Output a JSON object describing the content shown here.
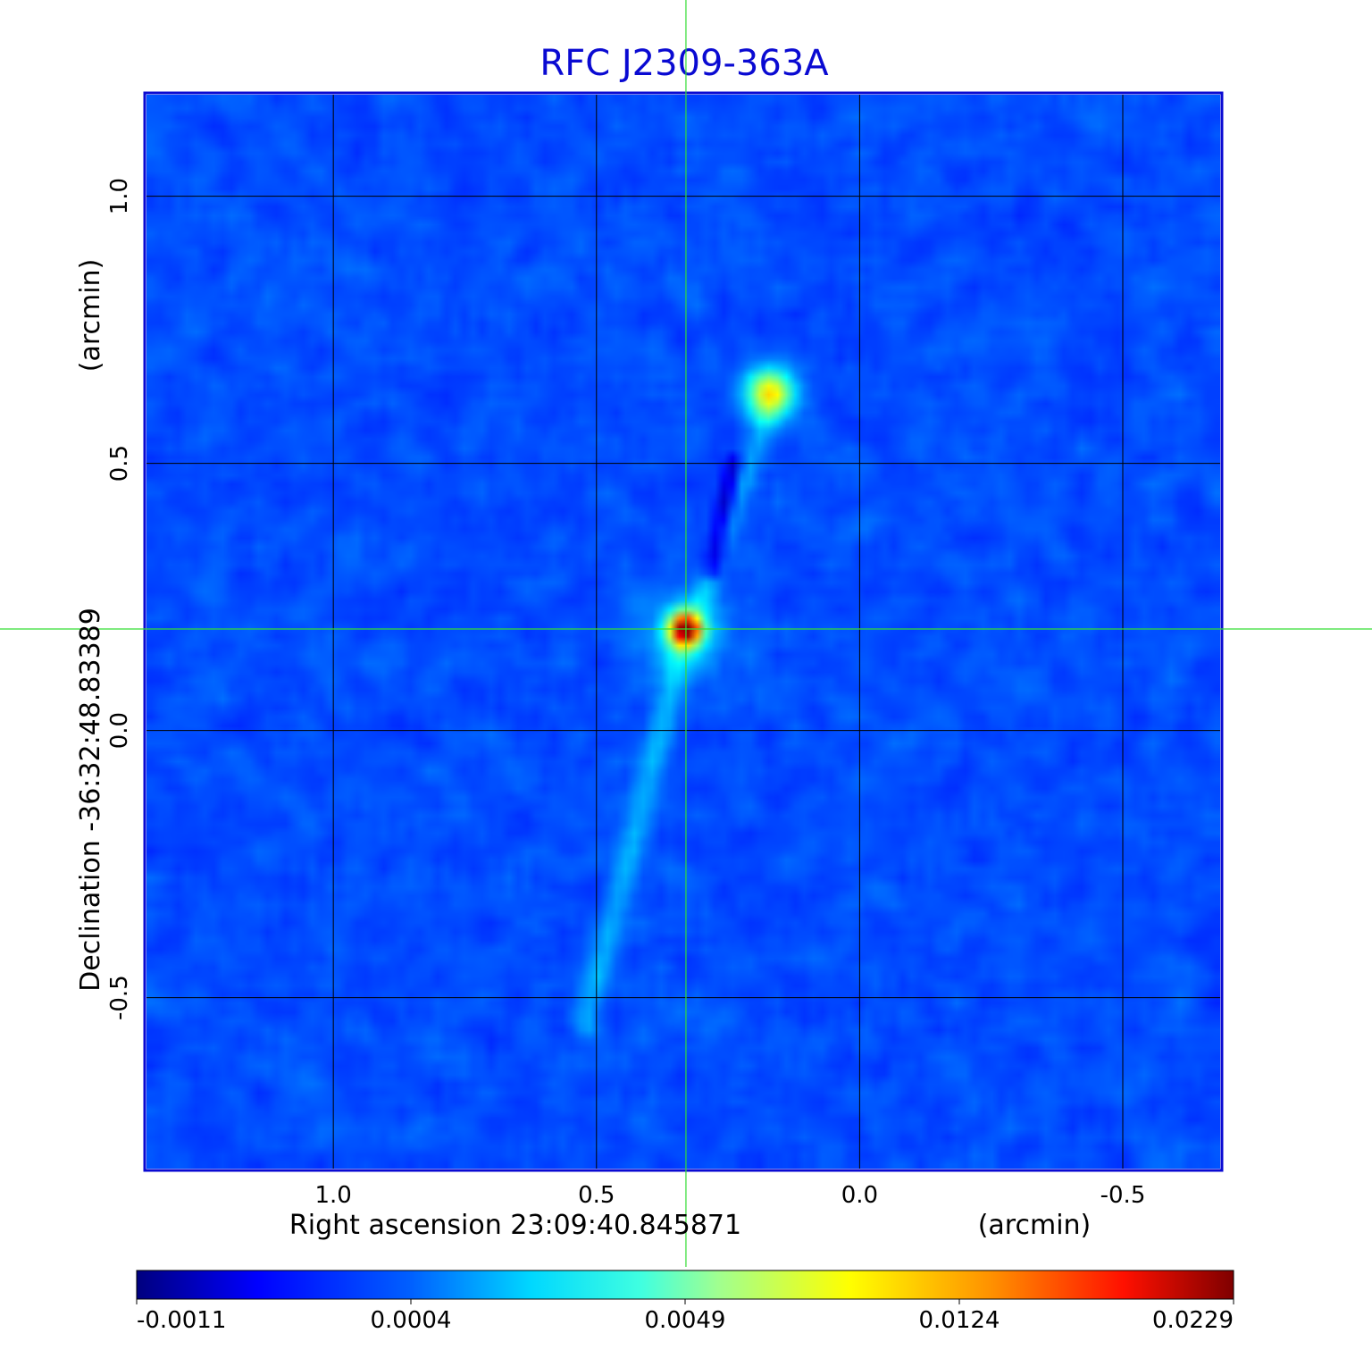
{
  "chart_data": {
    "type": "heatmap",
    "title": "RFC J2309-363A",
    "xlabel_left": "Right ascension  23:09:40.845871",
    "xlabel_right": "(arcmin)",
    "ylabel_left": "Declination  -36:32:48.83389",
    "ylabel_right": "(arcmin)",
    "x_ticks": [
      {
        "value": 1.0,
        "label": "1.0"
      },
      {
        "value": 0.5,
        "label": "0.5"
      },
      {
        "value": 0.0,
        "label": "0.0"
      },
      {
        "value": -0.5,
        "label": "-0.5"
      }
    ],
    "y_ticks": [
      {
        "value": 1.0,
        "label": "1.0"
      },
      {
        "value": 0.5,
        "label": "0.5"
      },
      {
        "value": 0.0,
        "label": "0.0"
      },
      {
        "value": -0.5,
        "label": "-0.5"
      }
    ],
    "xlim": [
      1.355,
      -0.685
    ],
    "ylim": [
      -0.82,
      1.19
    ],
    "x_reversed": true,
    "grid": true,
    "crosshair": {
      "x": 0.33,
      "y": 0.19,
      "color": "#33dd33"
    },
    "colormap": "jet",
    "colorbar": {
      "ticks": [
        "-0.0011",
        "0.0004",
        "0.0049",
        "0.0124",
        "0.0229"
      ],
      "min": -0.0011,
      "max": 0.0229
    },
    "sources": [
      {
        "x": 0.33,
        "y": 0.19,
        "peak": 0.0229
      },
      {
        "x": 0.17,
        "y": 0.63,
        "peak": 0.0124
      }
    ]
  }
}
